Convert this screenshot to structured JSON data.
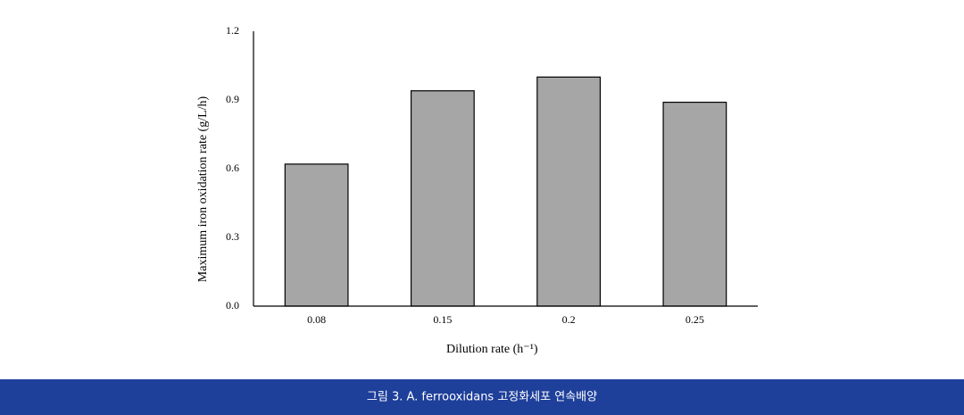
{
  "chart_data": {
    "type": "bar",
    "categories": [
      "0.08",
      "0.15",
      "0.2",
      "0.25"
    ],
    "values": [
      0.62,
      0.94,
      1.0,
      0.89
    ],
    "color": "#a6a6a6",
    "ylim": [
      0,
      1.2
    ],
    "yticks": [
      {
        "value": 0,
        "label": "0.0"
      },
      0.3,
      0.6,
      0.9,
      1.2
    ],
    "x_label": "Dilution rate (h⁻¹)",
    "y_label": "Maximum iron oxidation rate (g/L/h)",
    "grid": false
  },
  "caption": "그림 3.  A. ferrooxidans 고정화세포 연속배양"
}
